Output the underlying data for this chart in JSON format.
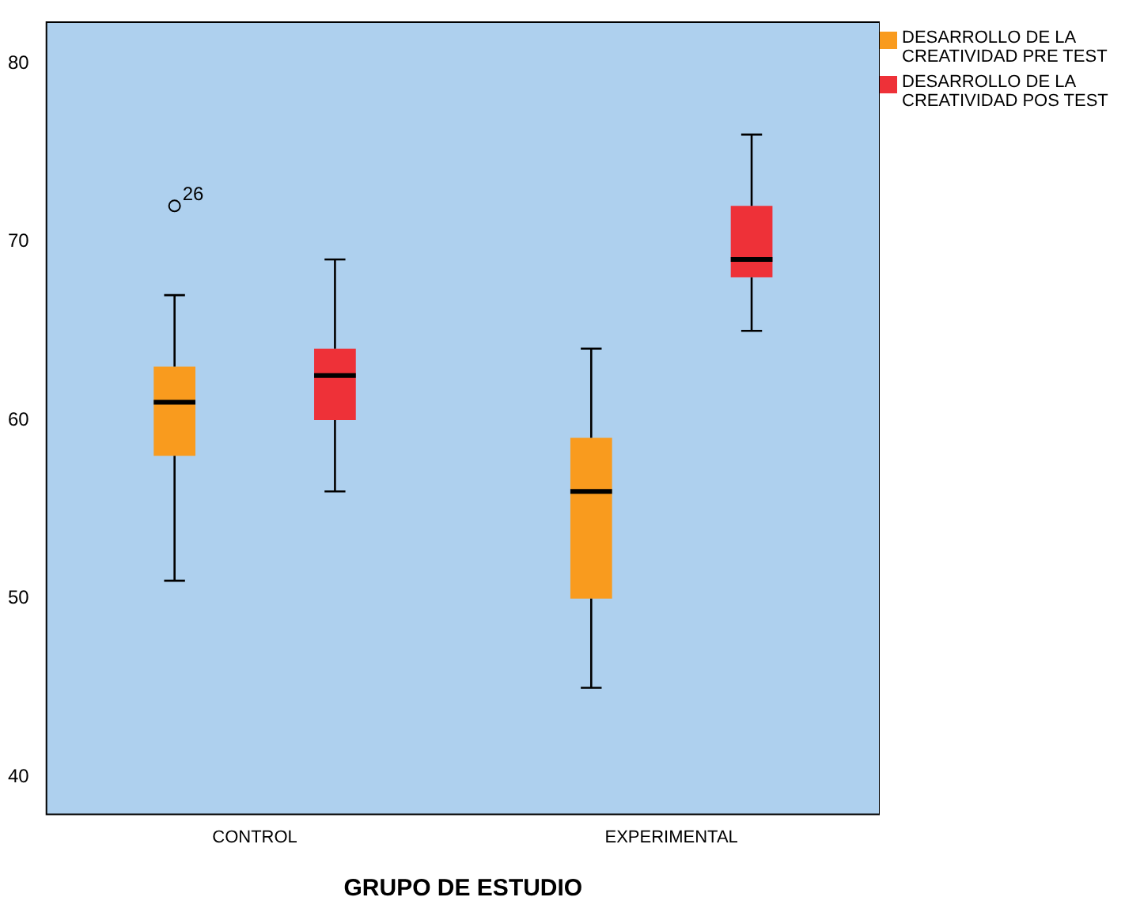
{
  "chart_data": {
    "type": "box",
    "xlabel": "GRUPO DE ESTUDIO",
    "categories": [
      "CONTROL",
      "EXPERIMENTAL"
    ],
    "series": [
      {
        "name": "DESARROLLO DE LA CREATIVIDAD PRE TEST",
        "color": "#f99b1e",
        "boxes": [
          {
            "low": 51,
            "q1": 58,
            "median": 61,
            "q3": 63,
            "high": 67,
            "outliers": [
              72
            ]
          },
          {
            "low": 45,
            "q1": 50,
            "median": 56,
            "q3": 59,
            "high": 64
          }
        ]
      },
      {
        "name": "DESARROLLO DE LA CREATIVIDAD POS TEST",
        "color": "#ee3138",
        "boxes": [
          {
            "low": 56,
            "q1": 60,
            "median": 62.5,
            "q3": 64,
            "high": 69
          },
          {
            "low": 65,
            "q1": 68,
            "median": 69,
            "q3": 72,
            "high": 76
          }
        ]
      }
    ],
    "ylim": [
      37.9,
      82.3
    ],
    "yticks": [
      40,
      50,
      60,
      70,
      80
    ],
    "grid": false,
    "legend": "top right",
    "annotations": [
      "26"
    ]
  }
}
